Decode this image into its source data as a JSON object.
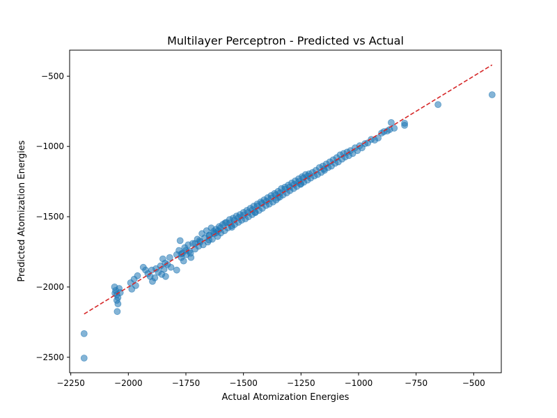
{
  "chart_data": {
    "type": "scatter",
    "title": "Multilayer Perceptron - Predicted vs Actual",
    "xlabel": "Actual Atomization Energies",
    "ylabel": "Predicted Atomization Energies",
    "xlim": [
      -2255,
      -380
    ],
    "ylim": [
      -2610,
      -315
    ],
    "xticks": [
      -2250,
      -2000,
      -1750,
      -1500,
      -1250,
      -1000,
      -750,
      -500
    ],
    "yticks": [
      -2500,
      -2000,
      -1500,
      -1000,
      -500
    ],
    "xtick_labels": [
      "−2250",
      "−2000",
      "−1750",
      "−1500",
      "−1250",
      "−1000",
      "−750",
      "−500"
    ],
    "ytick_labels": [
      "−2500",
      "−2000",
      "−1500",
      "−1000",
      "−500"
    ],
    "point_color": "#1f77b4",
    "reference_line": {
      "style": "dashed",
      "color": "#d62728",
      "x": [
        -2192,
        -420
      ],
      "y": [
        -2192,
        -420
      ]
    },
    "grid": false,
    "points": [
      [
        -2192,
        -2332
      ],
      [
        -2192,
        -2506
      ],
      [
        -2060,
        -2000
      ],
      [
        -2055,
        -2025
      ],
      [
        -2050,
        -2055
      ],
      [
        -2045,
        -2075
      ],
      [
        -2040,
        -2010
      ],
      [
        -2050,
        -2095
      ],
      [
        -2045,
        -2120
      ],
      [
        -2048,
        -2175
      ],
      [
        -2035,
        -2040
      ],
      [
        -2058,
        -2045
      ],
      [
        -1990,
        -1970
      ],
      [
        -1985,
        -2015
      ],
      [
        -1975,
        -1945
      ],
      [
        -1968,
        -1990
      ],
      [
        -1960,
        -1920
      ],
      [
        -1935,
        -1860
      ],
      [
        -1925,
        -1880
      ],
      [
        -1915,
        -1905
      ],
      [
        -1905,
        -1925
      ],
      [
        -1898,
        -1880
      ],
      [
        -1895,
        -1960
      ],
      [
        -1885,
        -1935
      ],
      [
        -1880,
        -1870
      ],
      [
        -1870,
        -1895
      ],
      [
        -1860,
        -1850
      ],
      [
        -1855,
        -1910
      ],
      [
        -1850,
        -1800
      ],
      [
        -1845,
        -1875
      ],
      [
        -1840,
        -1830
      ],
      [
        -1838,
        -1925
      ],
      [
        -1830,
        -1840
      ],
      [
        -1820,
        -1790
      ],
      [
        -1815,
        -1860
      ],
      [
        -1790,
        -1880
      ],
      [
        -1780,
        -1740
      ],
      [
        -1775,
        -1670
      ],
      [
        -1770,
        -1790
      ],
      [
        -1765,
        -1760
      ],
      [
        -1760,
        -1815
      ],
      [
        -1755,
        -1720
      ],
      [
        -1748,
        -1770
      ],
      [
        -1740,
        -1700
      ],
      [
        -1735,
        -1745
      ],
      [
        -1728,
        -1790
      ],
      [
        -1720,
        -1690
      ],
      [
        -1710,
        -1730
      ],
      [
        -1700,
        -1660
      ],
      [
        -1695,
        -1710
      ],
      [
        -1688,
        -1680
      ],
      [
        -1680,
        -1620
      ],
      [
        -1675,
        -1700
      ],
      [
        -1668,
        -1650
      ],
      [
        -1660,
        -1600
      ],
      [
        -1655,
        -1680
      ],
      [
        -1648,
        -1630
      ],
      [
        -1640,
        -1580
      ],
      [
        -1635,
        -1660
      ],
      [
        -1628,
        -1620
      ],
      [
        -1620,
        -1590
      ],
      [
        -1612,
        -1640
      ],
      [
        -1605,
        -1570
      ],
      [
        -1598,
        -1615
      ],
      [
        -1590,
        -1555
      ],
      [
        -1582,
        -1600
      ],
      [
        -1575,
        -1540
      ],
      [
        -1568,
        -1580
      ],
      [
        -1560,
        -1520
      ],
      [
        -1552,
        -1565
      ],
      [
        -1545,
        -1510
      ],
      [
        -1538,
        -1555
      ],
      [
        -1530,
        -1495
      ],
      [
        -1522,
        -1540
      ],
      [
        -1515,
        -1485
      ],
      [
        -1508,
        -1525
      ],
      [
        -1500,
        -1470
      ],
      [
        -1492,
        -1515
      ],
      [
        -1485,
        -1455
      ],
      [
        -1478,
        -1500
      ],
      [
        -1470,
        -1440
      ],
      [
        -1462,
        -1485
      ],
      [
        -1455,
        -1425
      ],
      [
        -1448,
        -1470
      ],
      [
        -1440,
        -1410
      ],
      [
        -1432,
        -1455
      ],
      [
        -1425,
        -1395
      ],
      [
        -1418,
        -1440
      ],
      [
        -1410,
        -1380
      ],
      [
        -1402,
        -1420
      ],
      [
        -1395,
        -1365
      ],
      [
        -1388,
        -1410
      ],
      [
        -1380,
        -1350
      ],
      [
        -1372,
        -1395
      ],
      [
        -1365,
        -1335
      ],
      [
        -1358,
        -1380
      ],
      [
        -1350,
        -1320
      ],
      [
        -1342,
        -1360
      ],
      [
        -1335,
        -1300
      ],
      [
        -1328,
        -1345
      ],
      [
        -1320,
        -1290
      ],
      [
        -1312,
        -1330
      ],
      [
        -1305,
        -1275
      ],
      [
        -1298,
        -1315
      ],
      [
        -1290,
        -1260
      ],
      [
        -1282,
        -1300
      ],
      [
        -1275,
        -1245
      ],
      [
        -1268,
        -1285
      ],
      [
        -1260,
        -1230
      ],
      [
        -1252,
        -1270
      ],
      [
        -1245,
        -1215
      ],
      [
        -1238,
        -1255
      ],
      [
        -1230,
        -1200
      ],
      [
        -1222,
        -1240
      ],
      [
        -1215,
        -1195
      ],
      [
        -1208,
        -1225
      ],
      [
        -1200,
        -1185
      ],
      [
        -1192,
        -1210
      ],
      [
        -1185,
        -1170
      ],
      [
        -1178,
        -1200
      ],
      [
        -1170,
        -1150
      ],
      [
        -1162,
        -1185
      ],
      [
        -1155,
        -1140
      ],
      [
        -1148,
        -1170
      ],
      [
        -1140,
        -1125
      ],
      [
        -1132,
        -1150
      ],
      [
        -1125,
        -1110
      ],
      [
        -1118,
        -1140
      ],
      [
        -1110,
        -1095
      ],
      [
        -1102,
        -1120
      ],
      [
        -1095,
        -1080
      ],
      [
        -1088,
        -1110
      ],
      [
        -1080,
        -1060
      ],
      [
        -1072,
        -1090
      ],
      [
        -1065,
        -1050
      ],
      [
        -1058,
        -1075
      ],
      [
        -1050,
        -1040
      ],
      [
        -1042,
        -1065
      ],
      [
        -1035,
        -1030
      ],
      [
        -1025,
        -1050
      ],
      [
        -1015,
        -1010
      ],
      [
        -1005,
        -1030
      ],
      [
        -995,
        -995
      ],
      [
        -985,
        -1010
      ],
      [
        -972,
        -980
      ],
      [
        -960,
        -975
      ],
      [
        -945,
        -950
      ],
      [
        -930,
        -955
      ],
      [
        -915,
        -940
      ],
      [
        -900,
        -905
      ],
      [
        -890,
        -895
      ],
      [
        -875,
        -890
      ],
      [
        -865,
        -880
      ],
      [
        -858,
        -830
      ],
      [
        -845,
        -870
      ],
      [
        -800,
        -835
      ],
      [
        -800,
        -850
      ],
      [
        -655,
        -702
      ],
      [
        -420,
        -632
      ],
      [
        -1620,
        -1615
      ],
      [
        -1600,
        -1580
      ],
      [
        -1580,
        -1545
      ],
      [
        -1560,
        -1545
      ],
      [
        -1540,
        -1525
      ],
      [
        -1520,
        -1505
      ],
      [
        -1500,
        -1490
      ],
      [
        -1480,
        -1470
      ],
      [
        -1460,
        -1450
      ],
      [
        -1440,
        -1425
      ],
      [
        -1420,
        -1405
      ],
      [
        -1400,
        -1390
      ],
      [
        -1380,
        -1370
      ],
      [
        -1360,
        -1345
      ],
      [
        -1340,
        -1330
      ],
      [
        -1320,
        -1305
      ],
      [
        -1300,
        -1290
      ],
      [
        -1280,
        -1270
      ],
      [
        -1260,
        -1250
      ],
      [
        -1240,
        -1225
      ],
      [
        -1220,
        -1210
      ],
      [
        -1710,
        -1690
      ],
      [
        -1690,
        -1670
      ],
      [
        -1650,
        -1635
      ],
      [
        -1630,
        -1605
      ],
      [
        -1610,
        -1600
      ],
      [
        -1730,
        -1760
      ],
      [
        -1750,
        -1740
      ],
      [
        -1770,
        -1765
      ],
      [
        -1790,
        -1770
      ],
      [
        -1450,
        -1470
      ],
      [
        -1350,
        -1365
      ],
      [
        -1250,
        -1265
      ],
      [
        -1150,
        -1160
      ],
      [
        -1550,
        -1575
      ],
      [
        -1650,
        -1665
      ]
    ]
  }
}
